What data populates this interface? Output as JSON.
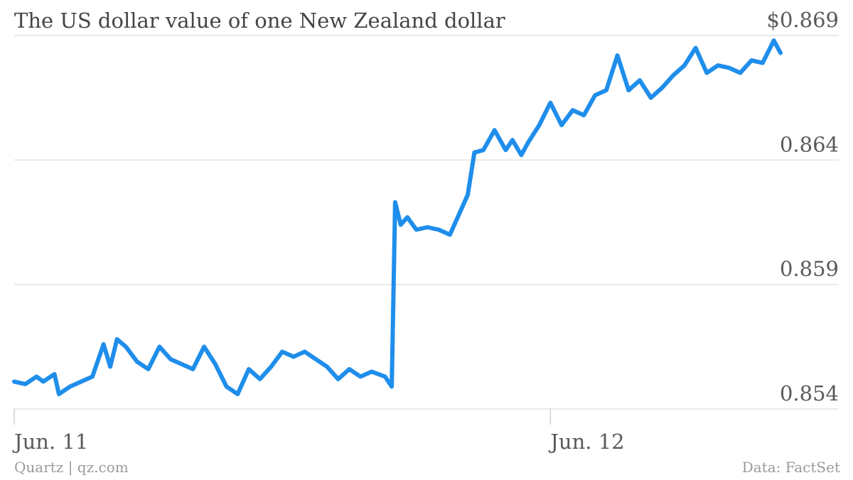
{
  "header": {
    "title": "The US dollar value of one New Zealand dollar"
  },
  "footer": {
    "credit": "Quartz | qz.com",
    "source": "Data: FactSet"
  },
  "chart_data": {
    "type": "line",
    "title": "The US dollar value of one New Zealand dollar",
    "xlabel": "",
    "ylabel": "",
    "ylim": [
      0.854,
      0.869
    ],
    "yticks": [
      0.854,
      0.859,
      0.864,
      0.869
    ],
    "ytick_labels": [
      "0.854",
      "0.859",
      "0.864",
      "$0.869"
    ],
    "xticks": [
      0,
      24
    ],
    "xtick_labels": [
      "Jun. 11",
      "Jun. 12"
    ],
    "x_unit": "hours since Jun. 11",
    "grid": true,
    "color": "#1f8eeb",
    "series": [
      {
        "name": "",
        "x": [
          0,
          0.5,
          1,
          1.3,
          1.8,
          2,
          2.5,
          3,
          3.5,
          4,
          4.3,
          4.6,
          5,
          5.5,
          6,
          6.5,
          7,
          7.5,
          8,
          8.5,
          9,
          9.5,
          10,
          10.5,
          11,
          11.5,
          12,
          12.5,
          13,
          13.5,
          14,
          14.5,
          15,
          15.5,
          16,
          16.6,
          16.9,
          17.05,
          17.3,
          17.6,
          18,
          18.5,
          19,
          19.5,
          20,
          20.3,
          20.6,
          21,
          21.5,
          22,
          22.3,
          22.7,
          23,
          23.5,
          24,
          24.5,
          25,
          25.5,
          26,
          26.5,
          27,
          27.5,
          28,
          28.5,
          29,
          29.5,
          30,
          30.5,
          31,
          31.5,
          32,
          32.5,
          33,
          33.5,
          34,
          34.3
        ],
        "values": [
          0.8551,
          0.855,
          0.8553,
          0.8551,
          0.8554,
          0.8546,
          0.8549,
          0.8551,
          0.8553,
          0.8566,
          0.8557,
          0.8568,
          0.8565,
          0.8559,
          0.8556,
          0.8565,
          0.856,
          0.8558,
          0.8556,
          0.8565,
          0.8558,
          0.8549,
          0.8546,
          0.8556,
          0.8552,
          0.8557,
          0.8563,
          0.8561,
          0.8563,
          0.856,
          0.8557,
          0.8552,
          0.8556,
          0.8553,
          0.8555,
          0.8553,
          0.8549,
          0.8623,
          0.8614,
          0.8617,
          0.8612,
          0.8613,
          0.8612,
          0.861,
          0.862,
          0.8626,
          0.8643,
          0.8644,
          0.8652,
          0.8644,
          0.8648,
          0.8642,
          0.8647,
          0.8654,
          0.8663,
          0.8654,
          0.866,
          0.8658,
          0.8666,
          0.8668,
          0.8682,
          0.8668,
          0.8672,
          0.8665,
          0.8669,
          0.8674,
          0.8678,
          0.8685,
          0.8675,
          0.8678,
          0.8677,
          0.8675,
          0.868,
          0.8679,
          0.8688,
          0.8683
        ]
      }
    ]
  }
}
